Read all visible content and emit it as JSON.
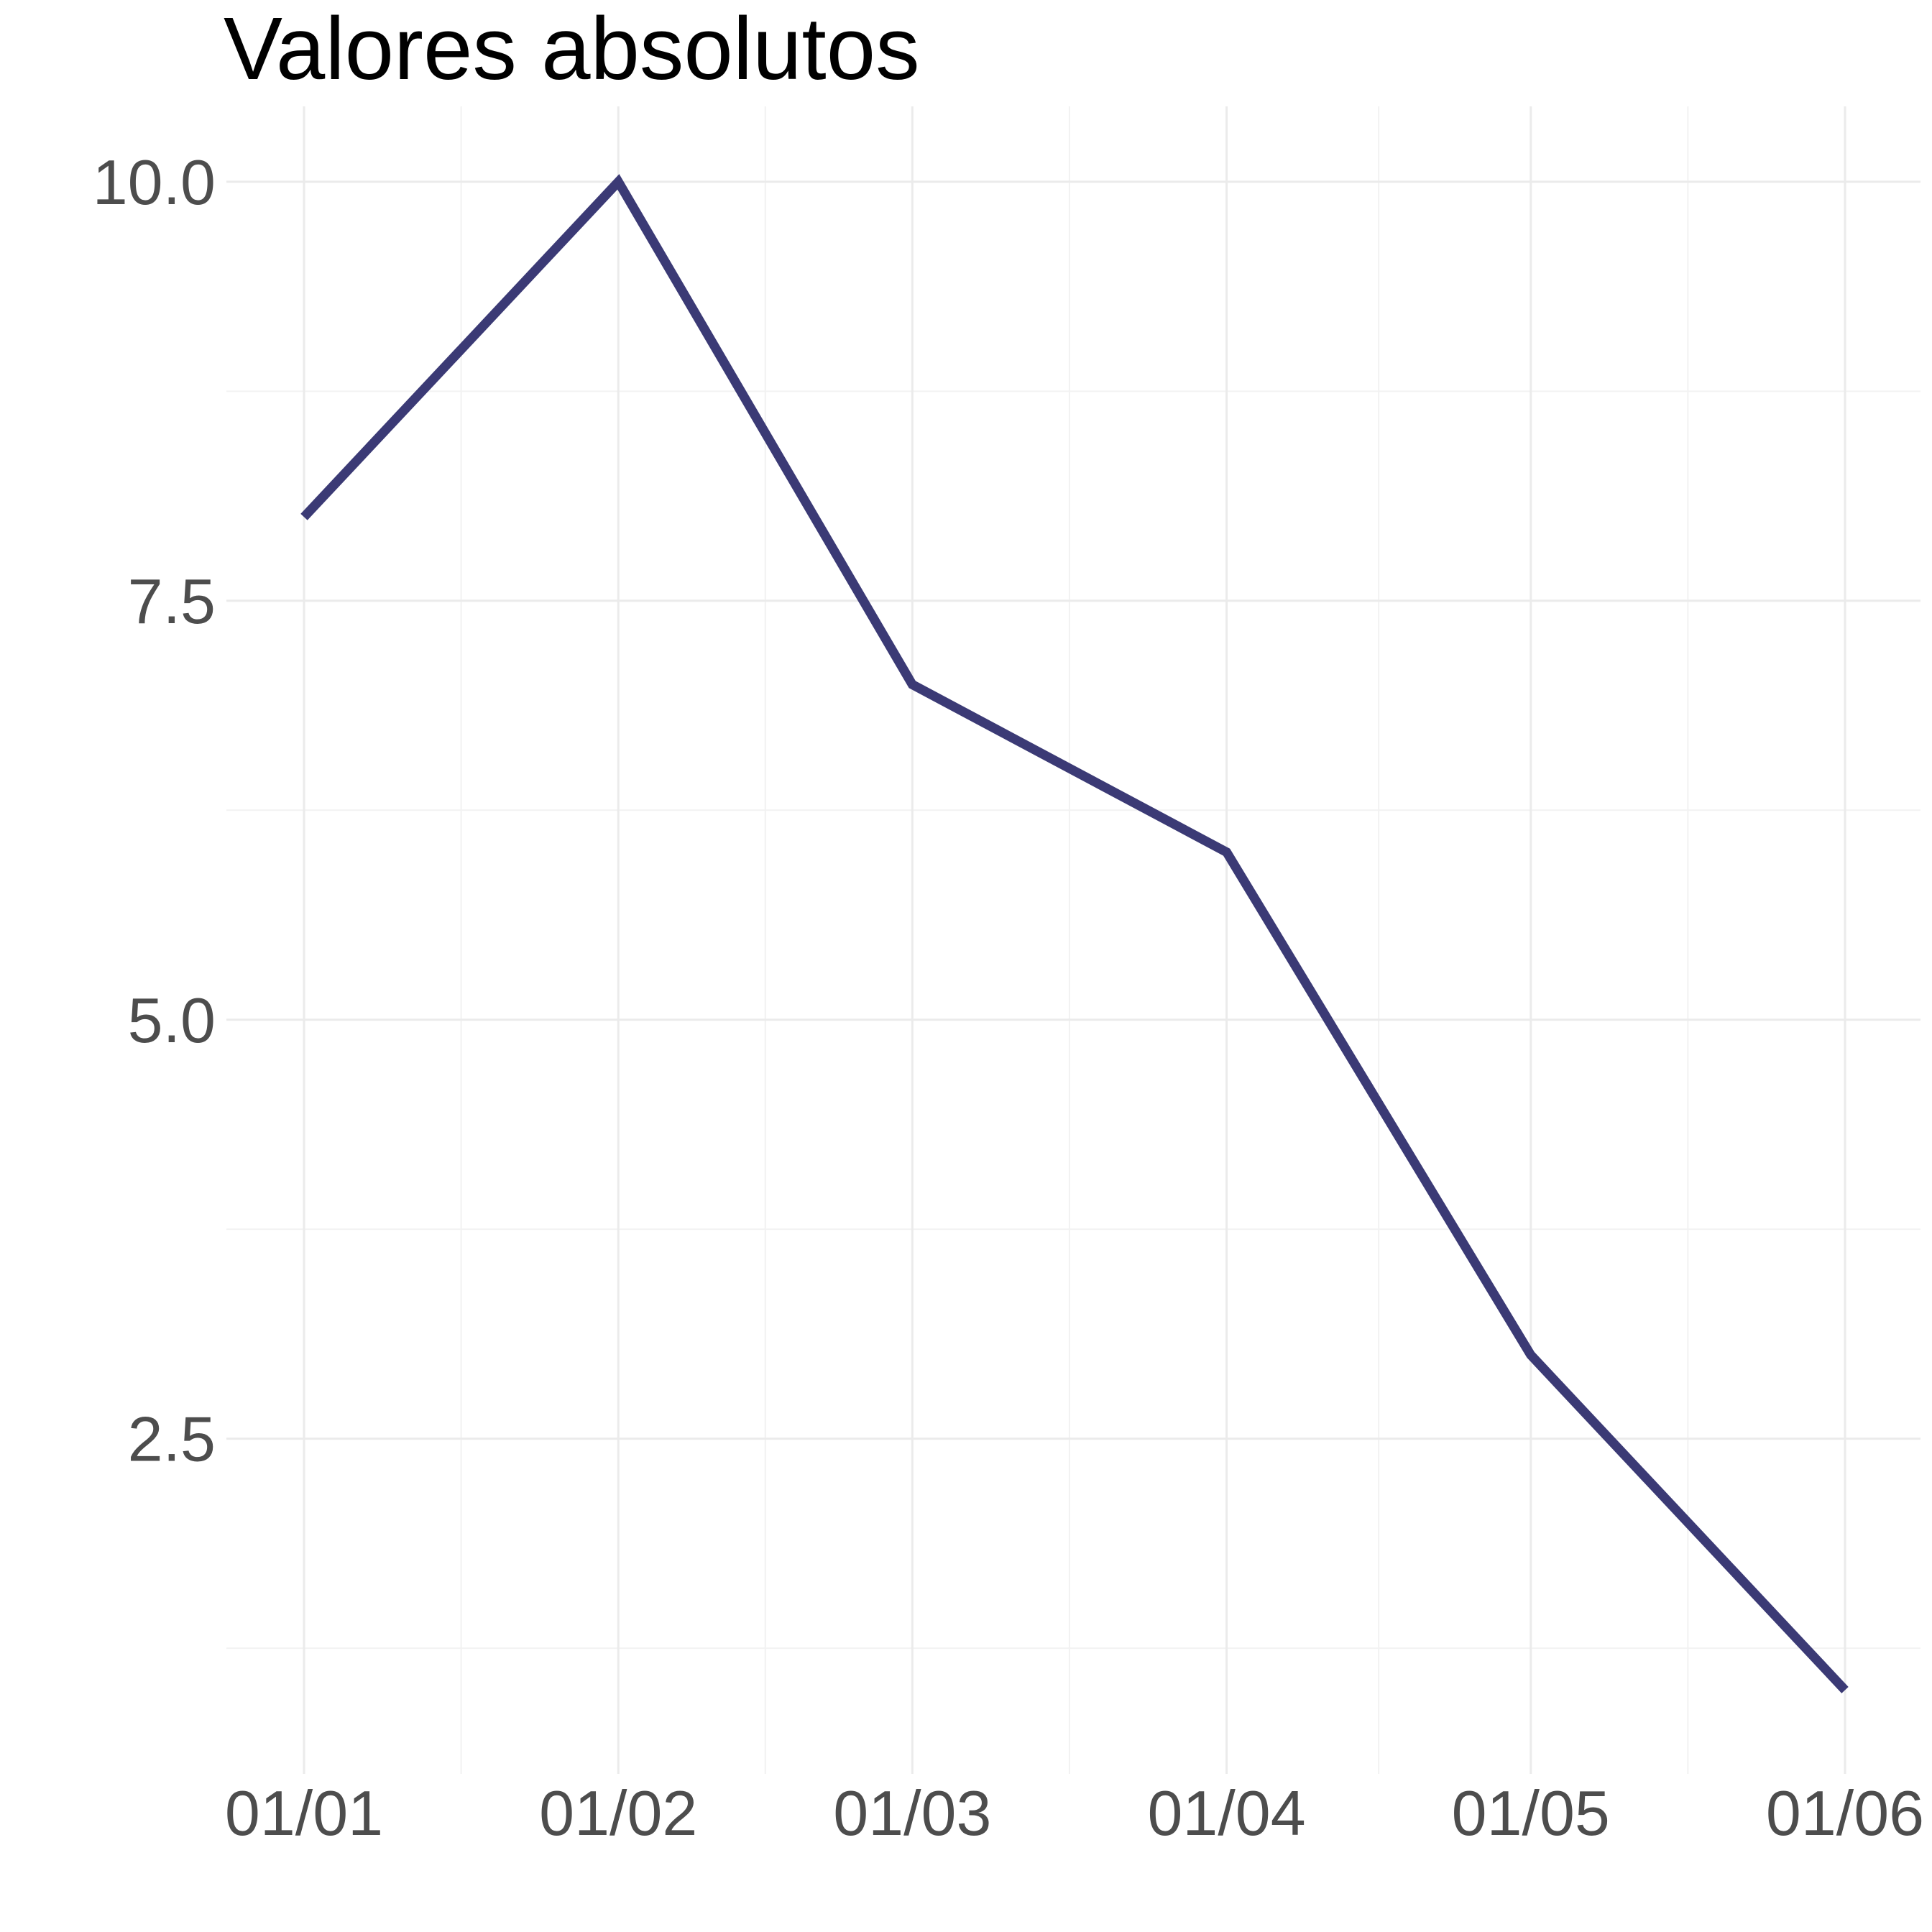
{
  "chart_data": {
    "type": "line",
    "title": "Valores absolutos",
    "xlabel": "",
    "ylabel": "",
    "x": [
      "2024-01-01",
      "2024-02-01",
      "2024-03-01",
      "2024-04-01",
      "2024-05-01",
      "2024-06-01"
    ],
    "x_tick_labels": [
      "01/01",
      "01/02",
      "01/03",
      "01/04",
      "01/05",
      "01/06"
    ],
    "series": [
      {
        "values": [
          8.0,
          10.0,
          7.0,
          6.0,
          3.0,
          1.0
        ],
        "color": "#3b3a75"
      }
    ],
    "y_ticks": [
      2.5,
      5.0,
      7.5,
      10.0
    ],
    "y_tick_labels": [
      "2.5",
      "5.0",
      "7.5",
      "10.0"
    ],
    "ylim": [
      0.5,
      10.45
    ],
    "grid": true,
    "legend": "none"
  }
}
